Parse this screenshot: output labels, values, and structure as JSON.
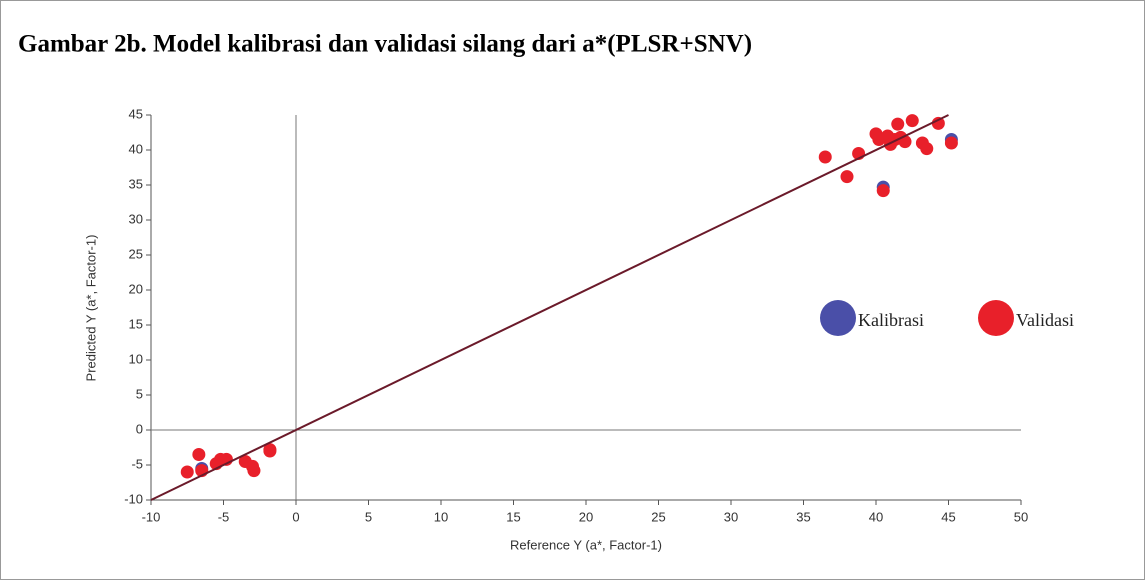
{
  "chart_data": {
    "type": "scatter",
    "title": "Gambar 2b. Model kalibrasi dan validasi silang dari a*(PLSR+SNV)",
    "xlabel": "Reference Y (a*, Factor-1)",
    "ylabel": "Predicted Y (a*, Factor-1)",
    "xlim": [
      -10,
      50
    ],
    "ylim": [
      -10,
      45
    ],
    "xticks": [
      -10,
      -5,
      0,
      5,
      10,
      15,
      20,
      25,
      30,
      35,
      40,
      45,
      50
    ],
    "yticks": [
      -10,
      -5,
      0,
      5,
      10,
      15,
      20,
      25,
      30,
      35,
      40,
      45
    ],
    "legend": "right",
    "series": [
      {
        "name": "Kalibrasi",
        "color": "#4a4fa8",
        "x": [
          40.5,
          45.2,
          -6.5
        ],
        "values": [
          34.7,
          41.5,
          -5.5
        ]
      },
      {
        "name": "Validasi",
        "color": "#e8202a",
        "x": [
          -7.5,
          -6.7,
          -6.5,
          -5.5,
          -5.2,
          -4.8,
          -3.5,
          -3,
          -2.9,
          -1.8,
          -1.8,
          36.5,
          38,
          38.8,
          40,
          40.2,
          40.5,
          40.8,
          41,
          41.3,
          41.5,
          41.7,
          42,
          42.5,
          43.2,
          43.5,
          44.3,
          45.2
        ],
        "values": [
          -6,
          -3.5,
          -5.8,
          -4.8,
          -4.2,
          -4.2,
          -4.5,
          -5.2,
          -5.8,
          -2.8,
          -3,
          39,
          36.2,
          39.5,
          42.3,
          41.5,
          34.2,
          42,
          40.8,
          41.5,
          43.7,
          41.8,
          41.2,
          44.2,
          41,
          40.2,
          43.8,
          41
        ]
      }
    ],
    "fit_line": {
      "color": "#6b1a2a",
      "x": [
        -10,
        45
      ],
      "values": [
        -10,
        45
      ]
    }
  }
}
